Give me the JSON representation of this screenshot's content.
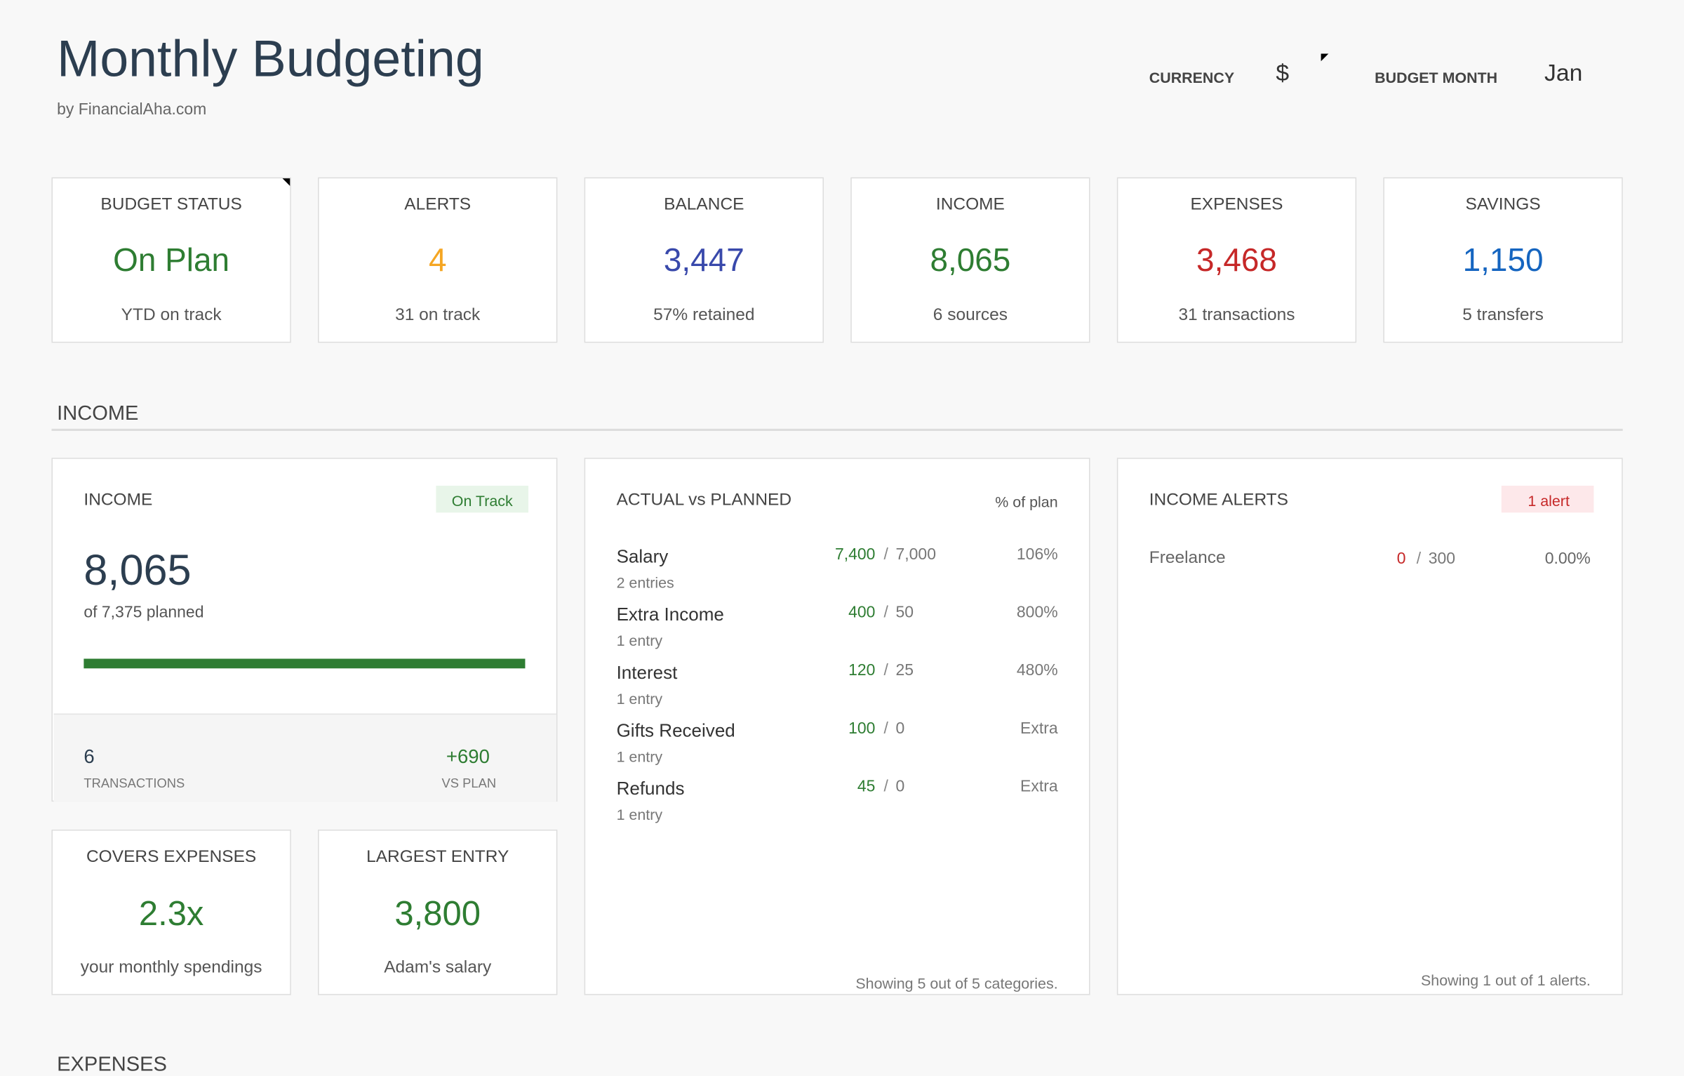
{
  "header": {
    "title": "Monthly Budgeting",
    "subtitle": "by FinancialAha.com",
    "currency_label": "CURRENCY",
    "currency": "$",
    "month_label": "BUDGET MONTH",
    "month": "Jan"
  },
  "kpis": [
    {
      "label": "BUDGET STATUS",
      "value": "On Plan",
      "note": "YTD on track",
      "color": "#2e7d32"
    },
    {
      "label": "ALERTS",
      "value": "4",
      "note": "31 on track",
      "color": "#f5a623"
    },
    {
      "label": "BALANCE",
      "value": "3,447",
      "note": "57% retained",
      "color": "#3949ab"
    },
    {
      "label": "INCOME",
      "value": "8,065",
      "note": "6 sources",
      "color": "#2e7d32"
    },
    {
      "label": "EXPENSES",
      "value": "3,468",
      "note": "31 transactions",
      "color": "#c62828"
    },
    {
      "label": "SAVINGS",
      "value": "1,150",
      "note": "5 transfers",
      "color": "#1565c0"
    }
  ],
  "income": {
    "heading": "INCOME",
    "summary": {
      "label": "INCOME",
      "badge": "On Track",
      "value": "8,065",
      "planned": "of 7,375 planned",
      "transactions": "6",
      "transactions_label": "TRANSACTIONS",
      "vs_plan": "+690",
      "vs_plan_label": "VS PLAN"
    },
    "small_cards": [
      {
        "label": "COVERS EXPENSES",
        "value": "2.3x",
        "note": "your monthly spendings"
      },
      {
        "label": "LARGEST ENTRY",
        "value": "3,800",
        "note": "Adam's salary"
      }
    ],
    "actual_vs_planned": {
      "title": "ACTUAL vs PLANNED",
      "column": "% of plan",
      "separator": "/",
      "rows": [
        {
          "name": "Salary",
          "entries": "2 entries",
          "actual": "7,400",
          "planned": "7,000",
          "pct": "106%"
        },
        {
          "name": "Extra Income",
          "entries": "1 entry",
          "actual": "400",
          "planned": "50",
          "pct": "800%"
        },
        {
          "name": "Interest",
          "entries": "1 entry",
          "actual": "120",
          "planned": "25",
          "pct": "480%"
        },
        {
          "name": "Gifts Received",
          "entries": "1 entry",
          "actual": "100",
          "planned": "0",
          "pct": "Extra"
        },
        {
          "name": "Refunds",
          "entries": "1 entry",
          "actual": "45",
          "planned": "0",
          "pct": "Extra"
        }
      ],
      "footer": "Showing 5 out of 5 categories."
    },
    "alerts": {
      "title": "INCOME ALERTS",
      "badge": "1 alert",
      "separator": "/",
      "rows": [
        {
          "name": "Freelance",
          "actual": "0",
          "planned": "300",
          "pct": "0.00%"
        }
      ],
      "footer": "Showing 1 out of 1 alerts."
    }
  },
  "expenses_heading": "EXPENSES"
}
